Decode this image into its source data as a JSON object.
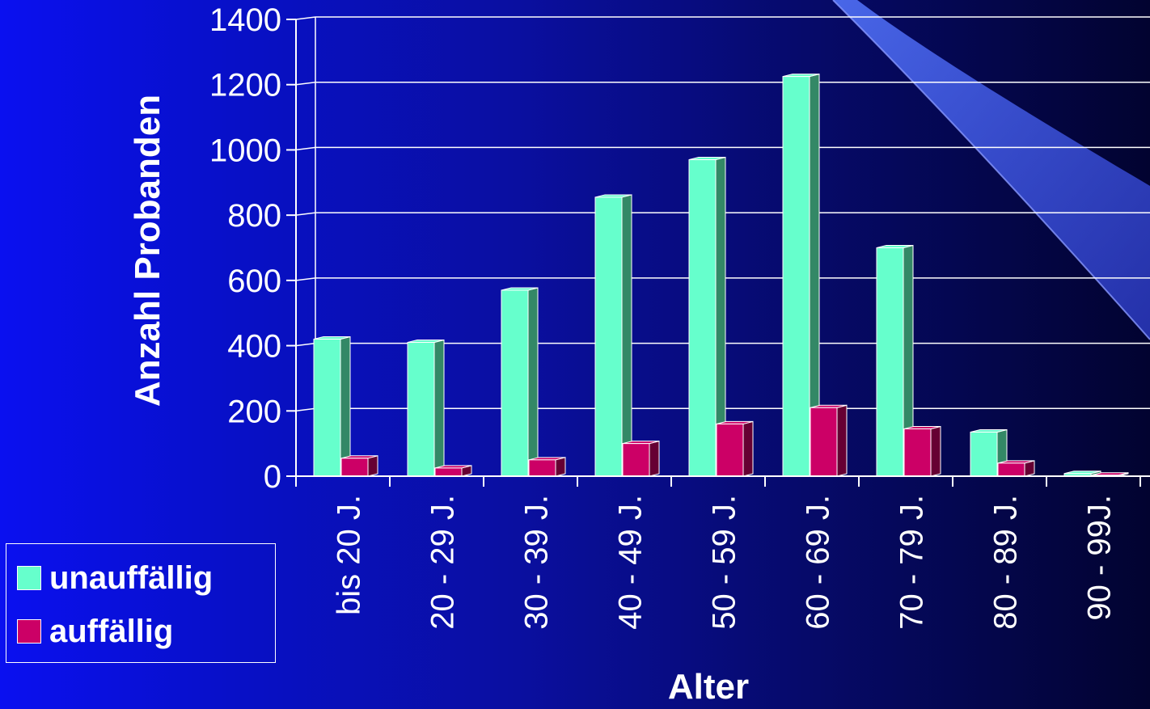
{
  "chart_data": {
    "type": "bar",
    "style": "3d-clustered",
    "categories": [
      "bis 20 J.",
      "20 - 29 J.",
      "30 - 39 J.",
      "40 - 49 J.",
      "50 - 59 J.",
      "60 - 69 J.",
      "70 - 79 J.",
      "80 - 89 J.",
      "90 - 99J."
    ],
    "series": [
      {
        "name": "unauffällig",
        "values": [
          420,
          410,
          570,
          855,
          970,
          1225,
          700,
          135,
          8
        ],
        "color": "#66ffcc",
        "side_color": "#338866"
      },
      {
        "name": "auffällig",
        "values": [
          55,
          25,
          50,
          100,
          160,
          210,
          145,
          40,
          3
        ],
        "color": "#cc0066",
        "side_color": "#660033"
      }
    ],
    "xlabel": "Alter",
    "ylabel": "Anzahl Probanden",
    "ylim": [
      0,
      1400
    ],
    "yticks": [
      0,
      200,
      400,
      600,
      800,
      1000,
      1200,
      1400
    ],
    "grid": true,
    "legend_position": "bottom-left",
    "colors": {
      "text": "#ffffff",
      "grid": "#ffffff",
      "background": "#0a10d0"
    }
  }
}
